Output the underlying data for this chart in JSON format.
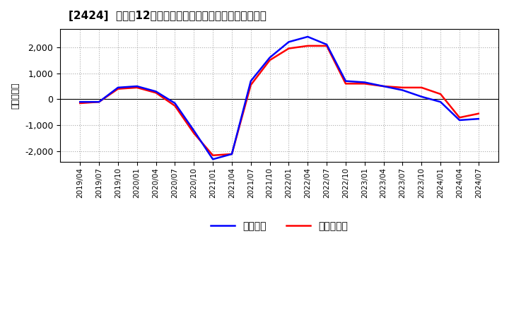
{
  "title": "[2424]  利益の12か月移動合計の対前年同期増減額の推移",
  "ylabel": "（百万円）",
  "ylim": [
    -2400,
    2700
  ],
  "yticks": [
    -2000,
    -1000,
    0,
    1000,
    2000
  ],
  "background_color": "#ffffff",
  "plot_bg_color": "#ffffff",
  "grid_color": "#aaaaaa",
  "line1_color": "#0000ff",
  "line2_color": "#ff0000",
  "legend1": "経常利益",
  "legend2": "当期純利益",
  "dates": [
    "2019/04",
    "2019/07",
    "2019/10",
    "2020/01",
    "2020/04",
    "2020/07",
    "2020/10",
    "2021/01",
    "2021/04",
    "2021/07",
    "2021/10",
    "2022/01",
    "2022/04",
    "2022/07",
    "2022/10",
    "2023/01",
    "2023/04",
    "2023/07",
    "2023/10",
    "2024/01",
    "2024/04",
    "2024/07"
  ],
  "ordinary_profit": [
    -100,
    -100,
    450,
    500,
    300,
    -150,
    -1200,
    -2300,
    -2100,
    700,
    1600,
    2200,
    2400,
    2100,
    700,
    650,
    500,
    350,
    100,
    -100,
    -800,
    -750
  ],
  "net_profit": [
    -150,
    -100,
    400,
    450,
    250,
    -250,
    -1300,
    -2150,
    -2100,
    550,
    1500,
    1950,
    2050,
    2050,
    600,
    600,
    500,
    450,
    450,
    200,
    -700,
    -550
  ]
}
